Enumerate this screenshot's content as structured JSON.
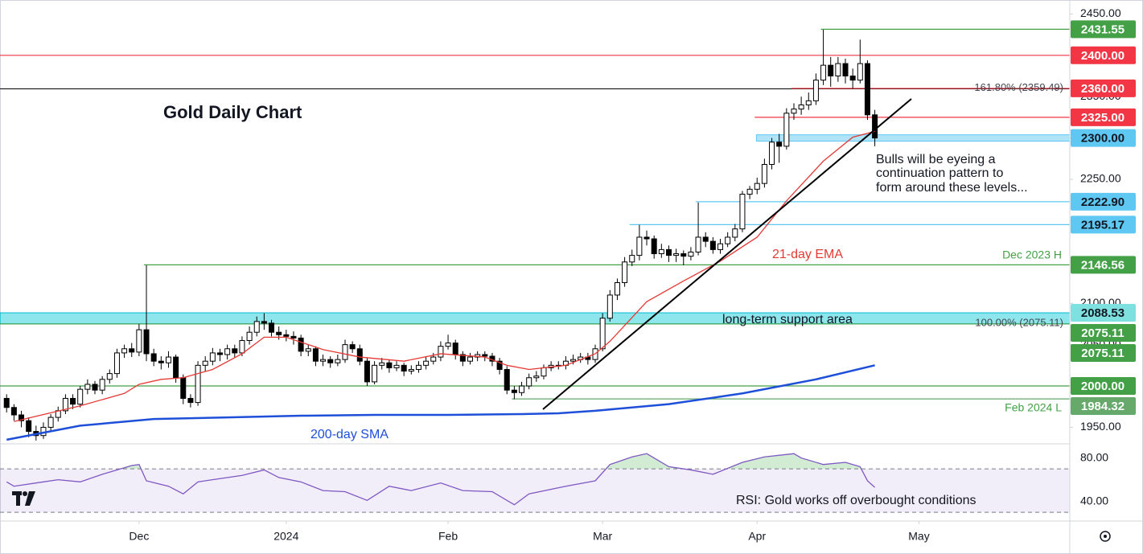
{
  "chart_data": {
    "type": "candlestick",
    "title": "Gold Daily Chart",
    "xlim": [
      -0.9,
      144.5
    ],
    "xticks": [
      {
        "value": 18,
        "label": "Dec"
      },
      {
        "value": 38,
        "label": "2024"
      },
      {
        "value": 60,
        "label": "Feb"
      },
      {
        "value": 81,
        "label": "Mar"
      },
      {
        "value": 102,
        "label": "Apr"
      },
      {
        "value": 124,
        "label": "May"
      }
    ],
    "ylim": [
      1930,
      2464
    ],
    "yticks": [
      {
        "value": 1950,
        "label": "1950.00"
      },
      {
        "value": 2000,
        "label": "2000.00"
      },
      {
        "value": 2050,
        "label": "2050.00"
      },
      {
        "value": 2100,
        "label": "2100.00"
      },
      {
        "value": 2150,
        "label": "2150.00"
      },
      {
        "value": 2200,
        "label": "2200.00"
      },
      {
        "value": 2250,
        "label": "2250.00"
      },
      {
        "value": 2300,
        "label": "2300.00"
      },
      {
        "value": 2350,
        "label": "2350.00"
      },
      {
        "value": 2400,
        "label": "2400.00"
      },
      {
        "value": 2450,
        "label": "2450.00"
      }
    ],
    "up_color": "#ffffff",
    "down_color": "#000000",
    "candles": [
      [
        1985,
        1990,
        1968,
        1974
      ],
      [
        1974,
        1978,
        1958,
        1965
      ],
      [
        1965,
        1970,
        1950,
        1958
      ],
      [
        1958,
        1962,
        1938,
        1945
      ],
      [
        1945,
        1952,
        1934,
        1940
      ],
      [
        1940,
        1956,
        1936,
        1950
      ],
      [
        1950,
        1966,
        1946,
        1962
      ],
      [
        1962,
        1975,
        1957,
        1970
      ],
      [
        1970,
        1990,
        1966,
        1985
      ],
      [
        1985,
        1990,
        1972,
        1978
      ],
      [
        1978,
        2000,
        1974,
        1996
      ],
      [
        1996,
        2008,
        1990,
        2002
      ],
      [
        2002,
        2006,
        1990,
        1995
      ],
      [
        1995,
        2012,
        1990,
        2008
      ],
      [
        2008,
        2020,
        2003,
        2015
      ],
      [
        2015,
        2045,
        2010,
        2040
      ],
      [
        2040,
        2050,
        2034,
        2045
      ],
      [
        2045,
        2052,
        2035,
        2041
      ],
      [
        2041,
        2075,
        2036,
        2068
      ],
      [
        2068,
        2146,
        2030,
        2039
      ],
      [
        2039,
        2045,
        2024,
        2030
      ],
      [
        2030,
        2036,
        2020,
        2028
      ],
      [
        2028,
        2042,
        2022,
        2035
      ],
      [
        2035,
        2038,
        2004,
        2010
      ],
      [
        2010,
        2014,
        1978,
        1985
      ],
      [
        1985,
        1990,
        1974,
        1980
      ],
      [
        1980,
        2030,
        1976,
        2025
      ],
      [
        2025,
        2036,
        2018,
        2030
      ],
      [
        2030,
        2046,
        2025,
        2040
      ],
      [
        2040,
        2045,
        2030,
        2038
      ],
      [
        2038,
        2050,
        2032,
        2045
      ],
      [
        2045,
        2050,
        2034,
        2040
      ],
      [
        2040,
        2060,
        2036,
        2055
      ],
      [
        2055,
        2072,
        2050,
        2065
      ],
      [
        2065,
        2084,
        2060,
        2078
      ],
      [
        2078,
        2088,
        2068,
        2076
      ],
      [
        2076,
        2080,
        2060,
        2065
      ],
      [
        2065,
        2072,
        2056,
        2062
      ],
      [
        2062,
        2068,
        2054,
        2060
      ],
      [
        2060,
        2066,
        2050,
        2058
      ],
      [
        2058,
        2062,
        2036,
        2042
      ],
      [
        2042,
        2050,
        2036,
        2045
      ],
      [
        2045,
        2048,
        2024,
        2030
      ],
      [
        2030,
        2038,
        2024,
        2032
      ],
      [
        2032,
        2036,
        2022,
        2028
      ],
      [
        2028,
        2038,
        2024,
        2032
      ],
      [
        2032,
        2056,
        2028,
        2050
      ],
      [
        2050,
        2054,
        2040,
        2045
      ],
      [
        2045,
        2050,
        2025,
        2030
      ],
      [
        2030,
        2034,
        2000,
        2005
      ],
      [
        2005,
        2030,
        2002,
        2025
      ],
      [
        2025,
        2034,
        2020,
        2028
      ],
      [
        2028,
        2032,
        2016,
        2022
      ],
      [
        2022,
        2030,
        2018,
        2025
      ],
      [
        2025,
        2028,
        2012,
        2018
      ],
      [
        2018,
        2025,
        2014,
        2020
      ],
      [
        2020,
        2030,
        2016,
        2025
      ],
      [
        2025,
        2035,
        2020,
        2030
      ],
      [
        2030,
        2040,
        2026,
        2035
      ],
      [
        2035,
        2054,
        2030,
        2048
      ],
      [
        2048,
        2062,
        2044,
        2052
      ],
      [
        2052,
        2056,
        2032,
        2038
      ],
      [
        2038,
        2042,
        2024,
        2030
      ],
      [
        2030,
        2040,
        2026,
        2035
      ],
      [
        2035,
        2042,
        2030,
        2038
      ],
      [
        2038,
        2042,
        2030,
        2036
      ],
      [
        2036,
        2040,
        2024,
        2030
      ],
      [
        2030,
        2034,
        2014,
        2020
      ],
      [
        2020,
        2024,
        1990,
        1995
      ],
      [
        1995,
        2000,
        1984,
        1992
      ],
      [
        1992,
        2005,
        1988,
        2000
      ],
      [
        2000,
        2015,
        1996,
        2010
      ],
      [
        2010,
        2018,
        2005,
        2012
      ],
      [
        2012,
        2026,
        2008,
        2022
      ],
      [
        2022,
        2030,
        2018,
        2025
      ],
      [
        2025,
        2030,
        2020,
        2025
      ],
      [
        2025,
        2036,
        2020,
        2030
      ],
      [
        2030,
        2038,
        2026,
        2032
      ],
      [
        2032,
        2040,
        2028,
        2035
      ],
      [
        2035,
        2040,
        2026,
        2032
      ],
      [
        2032,
        2050,
        2028,
        2045
      ],
      [
        2045,
        2088,
        2042,
        2082
      ],
      [
        2082,
        2116,
        2078,
        2110
      ],
      [
        2110,
        2130,
        2104,
        2125
      ],
      [
        2125,
        2156,
        2120,
        2150
      ],
      [
        2150,
        2165,
        2145,
        2158
      ],
      [
        2158,
        2195,
        2152,
        2180
      ],
      [
        2180,
        2188,
        2170,
        2178
      ],
      [
        2178,
        2182,
        2154,
        2160
      ],
      [
        2160,
        2172,
        2155,
        2165
      ],
      [
        2165,
        2170,
        2150,
        2158
      ],
      [
        2158,
        2166,
        2150,
        2160
      ],
      [
        2160,
        2164,
        2146,
        2157
      ],
      [
        2157,
        2168,
        2152,
        2162
      ],
      [
        2162,
        2222,
        2158,
        2180
      ],
      [
        2180,
        2186,
        2168,
        2175
      ],
      [
        2175,
        2180,
        2160,
        2165
      ],
      [
        2165,
        2178,
        2160,
        2172
      ],
      [
        2172,
        2186,
        2168,
        2180
      ],
      [
        2180,
        2196,
        2175,
        2190
      ],
      [
        2190,
        2236,
        2186,
        2232
      ],
      [
        2232,
        2242,
        2226,
        2238
      ],
      [
        2238,
        2252,
        2232,
        2245
      ],
      [
        2245,
        2275,
        2240,
        2268
      ],
      [
        2268,
        2300,
        2262,
        2295
      ],
      [
        2295,
        2305,
        2270,
        2290
      ],
      [
        2290,
        2336,
        2286,
        2330
      ],
      [
        2330,
        2342,
        2322,
        2335
      ],
      [
        2335,
        2350,
        2328,
        2340
      ],
      [
        2340,
        2355,
        2334,
        2345
      ],
      [
        2345,
        2378,
        2340,
        2370
      ],
      [
        2370,
        2431,
        2364,
        2388
      ],
      [
        2388,
        2398,
        2362,
        2375
      ],
      [
        2375,
        2398,
        2368,
        2390
      ],
      [
        2390,
        2396,
        2366,
        2375
      ],
      [
        2375,
        2384,
        2360,
        2370
      ],
      [
        2370,
        2419,
        2366,
        2390
      ],
      [
        2390,
        2394,
        2322,
        2328
      ],
      [
        2328,
        2334,
        2290,
        2300
      ]
    ],
    "series": [
      {
        "name": "21-day EMA",
        "color": "#e53935",
        "x": [
          1,
          10,
          16,
          18,
          21,
          24,
          28,
          32,
          35,
          38,
          43,
          48,
          54,
          59,
          65,
          68,
          71,
          76,
          80,
          82,
          87,
          92,
          97,
          102,
          106,
          111,
          115,
          118
        ],
        "values": [
          1957,
          1976,
          1991,
          2002,
          2008,
          2010,
          2020,
          2039,
          2059,
          2059,
          2044,
          2035,
          2030,
          2039,
          2035,
          2025,
          2020,
          2025,
          2039,
          2054,
          2102,
          2127,
          2151,
          2180,
          2224,
          2272,
          2301,
          2308
        ]
      },
      {
        "name": "200-day SMA",
        "color": "#1e4fd8",
        "x": [
          0,
          10,
          20,
          30,
          40,
          50,
          60,
          70,
          75,
          80,
          90,
          100,
          110,
          118
        ],
        "values": [
          1935,
          1952,
          1960,
          1962,
          1964,
          1965,
          1965,
          1966,
          1967,
          1970,
          1978,
          1991,
          2008,
          2025
        ]
      }
    ],
    "levels": [
      {
        "value": 2431.55,
        "label": "2431.55",
        "color": "#43a047",
        "text_color": "#ffffff"
      },
      {
        "value": 2400,
        "label": "2400.00",
        "color": "#f23645",
        "text_color": "#ffffff"
      },
      {
        "value": 2360,
        "label": "2360.00",
        "color": "#f23645",
        "text_color": "#ffffff"
      },
      {
        "value": 2325,
        "label": "2325.00",
        "color": "#f23645",
        "text_color": "#ffffff"
      },
      {
        "value": 2300,
        "label": "2300.00",
        "color": "#5ec8f2",
        "text_color": "#131722"
      },
      {
        "value": 2222.9,
        "label": "2222.90",
        "color": "#5ec8f2",
        "text_color": "#131722"
      },
      {
        "value": 2195.17,
        "label": "2195.17",
        "color": "#5ec8f2",
        "text_color": "#131722"
      },
      {
        "value": 2146.56,
        "label": "2146.56",
        "color": "#43a047",
        "text_color": "#ffffff"
      },
      {
        "value": 2088.53,
        "label": "2088.53",
        "color": "#7fe0e0",
        "text_color": "#131722"
      },
      {
        "value": 2075.11,
        "label": "2075.11",
        "color": "#43a047",
        "text_color": "#ffffff"
      },
      {
        "value": 2075.11,
        "label": "2075.11",
        "color": "#43a047",
        "text_color": "#ffffff"
      },
      {
        "value": 2000,
        "label": "2000.00",
        "color": "#43a047",
        "text_color": "#ffffff"
      },
      {
        "value": 1984.32,
        "label": "1984.32",
        "color": "#66a96a",
        "text_color": "#ffffff"
      }
    ],
    "fib": [
      {
        "value": 2359.49,
        "label": "161.80% (2359.49)"
      },
      {
        "value": 2075.11,
        "label": "100.00% (2075.11)"
      }
    ],
    "annotations": {
      "ema": "21-day EMA",
      "sma": "200-day SMA",
      "support": "long-term support area",
      "dec_high": "Dec 2023 H",
      "feb_low": "Feb 2024 L",
      "bulls": [
        "Bulls will be eyeing a",
        "continuation pattern to",
        "form around these levels..."
      ],
      "rsi": "RSI: Gold works off overbought conditions"
    },
    "rsi": {
      "color": "#7e57c2",
      "ylim": [
        22,
        93
      ],
      "yticks": [
        {
          "value": 80,
          "label": "80.00"
        },
        {
          "value": 40,
          "label": "40.00"
        }
      ],
      "band": [
        30,
        70
      ],
      "x": [
        0,
        1,
        5,
        7,
        10,
        13,
        17,
        18,
        19,
        22,
        24,
        26,
        29,
        32,
        35,
        37,
        40,
        43,
        46,
        49,
        52,
        55,
        59,
        62,
        66,
        69,
        71,
        76,
        80,
        82,
        85,
        87,
        90,
        93,
        96,
        100,
        103,
        107,
        108,
        111,
        114,
        116,
        117,
        118
      ],
      "values": [
        58,
        54,
        58,
        60,
        58,
        65,
        73,
        74,
        59,
        54,
        47,
        58,
        61,
        64,
        69,
        62,
        58,
        50,
        49,
        41,
        54,
        50,
        57,
        50,
        49,
        37,
        47,
        54,
        59,
        74,
        81,
        84,
        72,
        69,
        65,
        76,
        81,
        84,
        80,
        74,
        76,
        72,
        59,
        53
      ]
    }
  }
}
